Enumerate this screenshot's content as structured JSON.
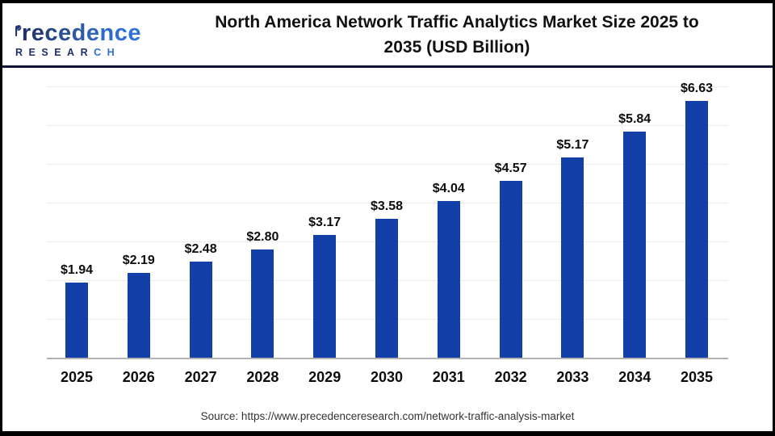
{
  "logo": {
    "brand_initial": "P",
    "brand_rest": "recedence",
    "brand_rest_colors": [
      "#232e6b",
      "#253a72",
      "#27457e",
      "#2a5090",
      "#2d5aa3",
      "#2f64b6",
      "#2f6ac7",
      "#2e6fd4",
      "#2e72dd"
    ],
    "navy": "#232e6b",
    "blue": "#2e6fd8",
    "sub_dark": "RESEAR",
    "sub_light": "CH"
  },
  "header": {
    "title": "North America Network Traffic Analytics Market Size 2025 to 2035 (USD Billion)",
    "title_line1": "North America Network Traffic Analytics Market Size 2025 to",
    "title_line2": "2035 (USD Billion)"
  },
  "chart_data": {
    "type": "bar",
    "title": "North America Network Traffic Analytics Market Size 2025 to 2035 (USD Billion)",
    "categories": [
      "2025",
      "2026",
      "2027",
      "2028",
      "2029",
      "2030",
      "2031",
      "2032",
      "2033",
      "2034",
      "2035"
    ],
    "values": [
      1.94,
      2.19,
      2.48,
      2.8,
      3.17,
      3.58,
      4.04,
      4.57,
      5.17,
      5.84,
      6.63
    ],
    "value_labels": [
      "$1.94",
      "$2.19",
      "$2.48",
      "$2.80",
      "$3.17",
      "$3.58",
      "$4.04",
      "$4.57",
      "$5.17",
      "$5.84",
      "$6.63"
    ],
    "unit": "USD Billion",
    "xlabel": "",
    "ylabel": "",
    "ylim": [
      0,
      7
    ],
    "gridline_values": [
      1,
      2,
      3,
      4,
      5,
      6,
      7
    ],
    "grid_on": true,
    "legend": "none",
    "bar_color": "#1240a8"
  },
  "footer": {
    "source": "Source: https://www.precedenceresearch.com/network-traffic-analysis-market"
  }
}
